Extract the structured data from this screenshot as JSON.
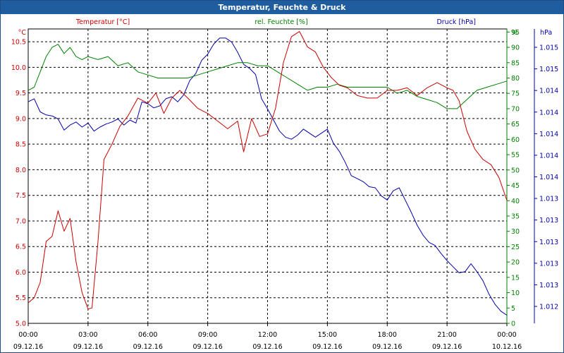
{
  "window": {
    "title": "Temperatur, Feuchte & Druck"
  },
  "chart_data": {
    "type": "line",
    "title": "Temperatur, Feuchte & Druck",
    "x_ticks": [
      {
        "time": "00:00",
        "date": "09.12.16"
      },
      {
        "time": "03:00",
        "date": "09.12.16"
      },
      {
        "time": "06:00",
        "date": "09.12.16"
      },
      {
        "time": "09:00",
        "date": "09.12.16"
      },
      {
        "time": "12:00",
        "date": "09.12.16"
      },
      {
        "time": "15:00",
        "date": "09.12.16"
      },
      {
        "time": "18:00",
        "date": "09.12.16"
      },
      {
        "time": "21:00",
        "date": "09.12.16"
      },
      {
        "time": "00:00",
        "date": "10.12.16"
      }
    ],
    "xlim": [
      0,
      24
    ],
    "grid": true,
    "axes": {
      "temperature": {
        "unit": "°C",
        "ylim": [
          5.0,
          10.75
        ],
        "ticks": [
          "5.0",
          "5.5",
          "6.0",
          "6.5",
          "7.0",
          "7.5",
          "8.0",
          "8.5",
          "9.0",
          "9.5",
          "10.0",
          "10.5"
        ],
        "color": "#cc0000"
      },
      "humidity": {
        "unit": "%",
        "ylim": [
          0,
          96
        ],
        "ticks": [
          "0",
          "5",
          "10",
          "15",
          "20",
          "25",
          "30",
          "35",
          "40",
          "45",
          "50",
          "55",
          "60",
          "65",
          "70",
          "75",
          "80",
          "85",
          "90",
          "95"
        ],
        "color": "#008000"
      },
      "pressure": {
        "unit": "hPa",
        "ticks": [
          "1.012",
          "1.013",
          "1.013",
          "1.013",
          "1.013",
          "1.013",
          "1.014",
          "1.014",
          "1.014",
          "1.014",
          "1.014",
          "1.015",
          "1.015"
        ],
        "color": "#0000aa"
      }
    },
    "series": [
      {
        "name": "Temperatur [°C]",
        "color": "#cc0000",
        "axis": "temperature",
        "x": [
          0,
          0.3,
          0.6,
          0.9,
          1.2,
          1.5,
          1.8,
          2.1,
          2.4,
          2.7,
          3.0,
          3.2,
          3.5,
          3.8,
          4.2,
          4.6,
          5.0,
          5.5,
          6.0,
          6.4,
          6.8,
          7.2,
          7.6,
          8.0,
          8.5,
          9.0,
          9.5,
          10.0,
          10.5,
          10.8,
          11.2,
          11.6,
          12.0,
          12.4,
          12.8,
          13.2,
          13.6,
          14.0,
          14.4,
          14.8,
          15.2,
          15.6,
          16.0,
          16.5,
          17.0,
          17.5,
          18.0,
          18.5,
          19.0,
          19.5,
          20.0,
          20.5,
          21.0,
          21.3,
          21.6,
          22.0,
          22.4,
          22.8,
          23.2,
          23.6,
          24.0
        ],
        "y": [
          5.4,
          5.5,
          5.8,
          6.6,
          6.7,
          7.2,
          6.8,
          7.05,
          6.2,
          5.6,
          5.28,
          5.3,
          6.6,
          8.2,
          8.5,
          8.85,
          9.05,
          9.4,
          9.3,
          9.5,
          9.1,
          9.4,
          9.55,
          9.4,
          9.2,
          9.1,
          8.95,
          8.8,
          8.95,
          8.35,
          9.0,
          8.65,
          8.7,
          9.2,
          10.1,
          10.6,
          10.7,
          10.4,
          10.3,
          10.0,
          9.8,
          9.65,
          9.6,
          9.45,
          9.4,
          9.4,
          9.55,
          9.55,
          9.6,
          9.45,
          9.6,
          9.7,
          9.6,
          9.55,
          9.35,
          8.75,
          8.4,
          8.2,
          8.1,
          7.85,
          7.4
        ]
      },
      {
        "name": "rel. Feuchte [%]",
        "color": "#008000",
        "axis": "humidity",
        "x": [
          0,
          0.3,
          0.6,
          0.9,
          1.2,
          1.5,
          1.8,
          2.1,
          2.4,
          2.7,
          3.0,
          3.5,
          4.0,
          4.5,
          5.0,
          5.5,
          6.0,
          6.5,
          7.0,
          7.5,
          8.0,
          8.5,
          9.0,
          9.5,
          10.0,
          10.5,
          11.0,
          11.5,
          12.0,
          12.5,
          13.0,
          13.5,
          14.0,
          14.5,
          15.0,
          15.5,
          16.0,
          16.5,
          17.0,
          17.5,
          18.0,
          18.5,
          19.0,
          19.5,
          20.0,
          20.5,
          21.0,
          21.5,
          22.0,
          22.5,
          23.0,
          23.5,
          24.0
        ],
        "y": [
          76,
          77,
          82,
          87,
          90,
          91,
          88,
          90,
          87,
          86,
          87,
          86,
          87,
          84,
          85,
          82,
          81,
          80,
          80,
          80,
          80,
          81,
          82,
          83,
          84,
          85,
          85,
          84,
          84,
          82,
          80,
          78,
          76,
          77,
          77,
          78,
          77,
          77,
          77,
          77,
          77,
          75,
          76,
          74,
          73,
          72,
          70,
          70,
          73,
          76,
          77,
          78,
          79
        ]
      },
      {
        "name": "Druck [hPa]",
        "color": "#0000aa",
        "axis": "pressure",
        "x": [
          0,
          0.3,
          0.6,
          0.9,
          1.2,
          1.5,
          1.8,
          2.1,
          2.4,
          2.7,
          3.0,
          3.3,
          3.6,
          3.9,
          4.2,
          4.5,
          4.8,
          5.1,
          5.4,
          5.7,
          6.0,
          6.3,
          6.6,
          6.9,
          7.2,
          7.5,
          7.8,
          8.1,
          8.4,
          8.7,
          9.0,
          9.3,
          9.6,
          9.9,
          10.2,
          10.5,
          10.8,
          11.1,
          11.4,
          11.7,
          12.0,
          12.3,
          12.6,
          12.9,
          13.2,
          13.5,
          13.8,
          14.1,
          14.4,
          14.7,
          15.0,
          15.3,
          15.6,
          15.9,
          16.2,
          16.5,
          16.8,
          17.1,
          17.4,
          17.7,
          18.0,
          18.3,
          18.6,
          18.9,
          19.2,
          19.5,
          19.8,
          20.1,
          20.4,
          20.7,
          21.0,
          21.3,
          21.6,
          21.9,
          22.2,
          22.5,
          22.8,
          23.1,
          23.4,
          23.7,
          24.0
        ],
        "y": [
          1.01415,
          1.01418,
          1.01405,
          1.01402,
          1.01401,
          1.01398,
          1.01387,
          1.01392,
          1.01395,
          1.0139,
          1.01394,
          1.01386,
          1.0139,
          1.01393,
          1.01395,
          1.01398,
          1.01392,
          1.01397,
          1.01394,
          1.01415,
          1.01413,
          1.01409,
          1.01411,
          1.01418,
          1.0142,
          1.01415,
          1.01422,
          1.01436,
          1.01443,
          1.01456,
          1.01462,
          1.01472,
          1.01478,
          1.01478,
          1.01474,
          1.01464,
          1.01452,
          1.01448,
          1.01442,
          1.01418,
          1.01408,
          1.01397,
          1.01386,
          1.0138,
          1.01378,
          1.01382,
          1.01388,
          1.01384,
          1.0138,
          1.01384,
          1.01388,
          1.01374,
          1.01366,
          1.01355,
          1.01342,
          1.01339,
          1.01336,
          1.01331,
          1.0133,
          1.01322,
          1.01318,
          1.01327,
          1.0133,
          1.01318,
          1.01306,
          1.01293,
          1.01283,
          1.01276,
          1.01273,
          1.01265,
          1.01258,
          1.01252,
          1.01246,
          1.01247,
          1.01255,
          1.01247,
          1.01238,
          1.01225,
          1.01215,
          1.01208,
          1.01204
        ]
      }
    ]
  }
}
